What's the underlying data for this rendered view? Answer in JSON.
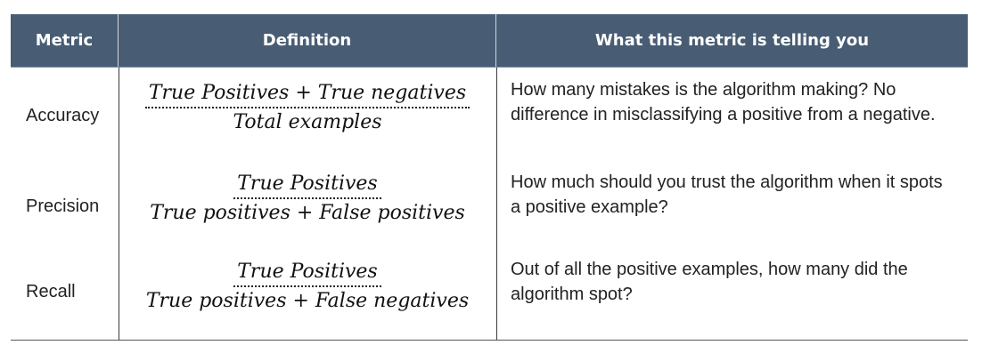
{
  "header": {
    "metric": "Metric",
    "definition": "Definition",
    "what": "What this metric is telling you"
  },
  "rows": [
    {
      "metric": "Accuracy",
      "numerator": "True Positives + True negatives",
      "denominator": "Total examples",
      "what": "How many mistakes is the algorithm making? No difference in misclassifying a positive from a negative."
    },
    {
      "metric": "Precision",
      "numerator": "True Positives",
      "denominator": "True positives + False positives",
      "what": "How much should you trust the algorithm when it spots a positive example?"
    },
    {
      "metric": "Recall",
      "numerator": "True Positives",
      "denominator": "True positives + False negatives",
      "what": "Out of all the positive examples, how many did the algorithm spot?"
    }
  ],
  "colors": {
    "header_bg": "#485d74",
    "header_text": "#ffffff"
  }
}
